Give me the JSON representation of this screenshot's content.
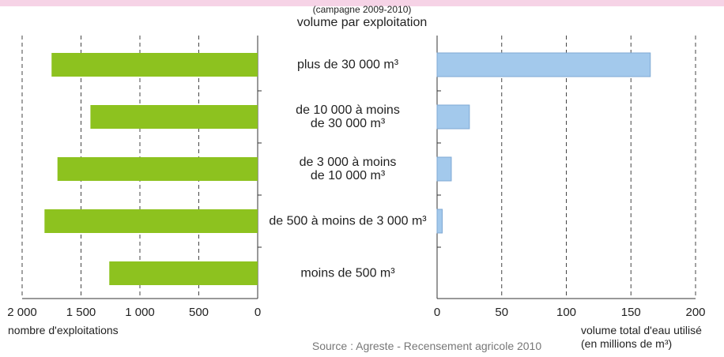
{
  "chart_data": [
    {
      "type": "bar",
      "orientation": "horizontal",
      "subtitle": "(campagne 2009-2010)",
      "title": "volume par exploitation",
      "categories": [
        "plus de 30 000 m³",
        "de 10 000 à moins\nde 30 000 m³",
        "de 3 000 à  moins\nde 10 000 m³",
        "de 500 à moins de 3 000 m³",
        "moins de 500 m³"
      ],
      "values": [
        1750,
        1420,
        1700,
        1810,
        1260
      ],
      "color": "#8dc21f",
      "xlim": [
        2000,
        0
      ],
      "xticks": [
        {
          "value": 2000,
          "label": "2 000"
        },
        {
          "value": 1500,
          "label": "1 500"
        },
        {
          "value": 1000,
          "label": "1 000"
        },
        500,
        0
      ],
      "xlabel": "nombre d'exploitations",
      "grid": true,
      "note": "Source : Agreste - Recensement agricole 2010"
    },
    {
      "type": "bar",
      "orientation": "horizontal",
      "values": [
        165,
        25,
        11,
        4,
        0
      ],
      "color": "#a3c9ec",
      "xlim": [
        0,
        200
      ],
      "xticks": [
        0,
        50,
        100,
        150,
        200
      ],
      "xlabel": "volume total d'eau utilisé\n(en millions de m³)",
      "grid": true
    }
  ]
}
